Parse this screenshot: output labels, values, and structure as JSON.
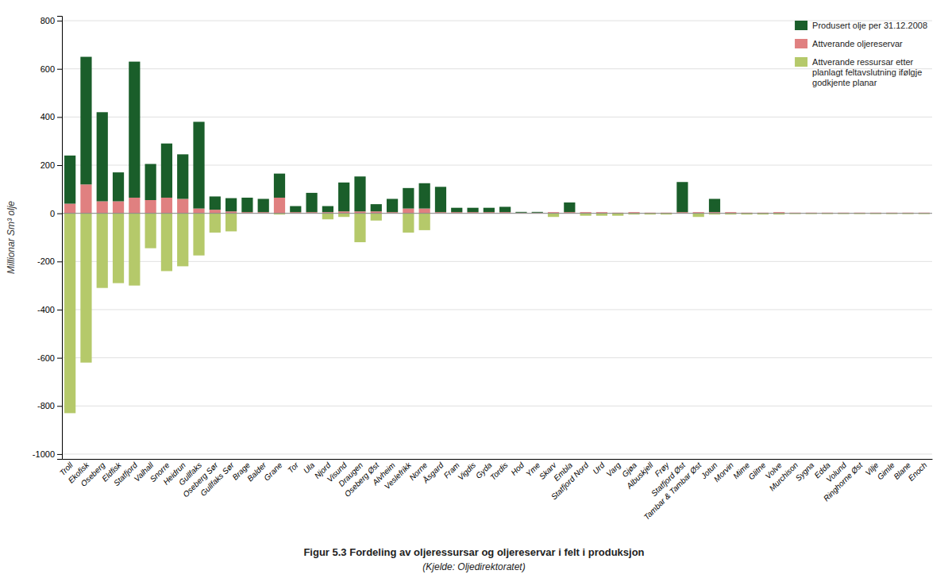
{
  "chart_data": {
    "type": "bar",
    "title": "Figur 5.3  Fordeling av oljeressursar og oljereservar i felt i produksjon",
    "subtitle": "(Kjelde: Oljedirektoratet)",
    "ylabel": "Millionar Sm³ olje",
    "categories": [
      "Troll",
      "Ekofisk",
      "Oseberg",
      "Eldfisk",
      "Statfjord",
      "Valhall",
      "Snorre",
      "Heidrun",
      "Gullfaks",
      "Oseberg Sør",
      "Gullfaks Sør",
      "Brage",
      "Balder",
      "Grane",
      "Tor",
      "Ula",
      "Njord",
      "Visund",
      "Draugen",
      "Oseberg Øst",
      "Alvheim",
      "Veslefrikk",
      "Norne",
      "Åsgard",
      "Fram",
      "Vigdis",
      "Gyda",
      "Tordis",
      "Hod",
      "Yme",
      "Skarv",
      "Embla",
      "Statfjord Nord",
      "Urd",
      "Varg",
      "Gjøa",
      "Albuskjell",
      "Frøy",
      "Statfjord Øst",
      "Tambar & Tambar Øst",
      "Jotun",
      "Morvin",
      "Mime",
      "Glitne",
      "Volve",
      "Murchison",
      "Sygna",
      "Edda",
      "Volund",
      "Ringhorne Øst",
      "Vilje",
      "Gimle",
      "Blane",
      "Enoch"
    ],
    "series": [
      {
        "name": "Produsert olje per 31.12.2008",
        "color": "#1a5e2a",
        "values": [
          200,
          530,
          370,
          120,
          565,
          150,
          225,
          185,
          360,
          55,
          55,
          60,
          55,
          100,
          25,
          80,
          25,
          120,
          145,
          30,
          55,
          85,
          105,
          105,
          18,
          18,
          18,
          22,
          3,
          3,
          0,
          40,
          0,
          0,
          0,
          0,
          0,
          0,
          125,
          0,
          55,
          0,
          0,
          0,
          0,
          0,
          0,
          0,
          0,
          0,
          0,
          0,
          0,
          0
        ]
      },
      {
        "name": "Attverande oljereservar",
        "color": "#e08080",
        "values": [
          40,
          120,
          50,
          50,
          65,
          55,
          65,
          60,
          20,
          15,
          8,
          5,
          5,
          65,
          5,
          5,
          5,
          8,
          8,
          8,
          5,
          20,
          20,
          5,
          5,
          5,
          5,
          5,
          3,
          3,
          5,
          5,
          5,
          5,
          3,
          5,
          3,
          3,
          5,
          5,
          5,
          5,
          3,
          3,
          5,
          3,
          3,
          3,
          3,
          3,
          3,
          3,
          3,
          3
        ]
      },
      {
        "name": "Attverande ressursar etter\nplanlagt feltavslutning ifølgje\ngodkjente planar",
        "color": "#b5c96a",
        "values": [
          -830,
          -620,
          -310,
          -290,
          -300,
          -145,
          -240,
          -220,
          -175,
          -80,
          -75,
          0,
          0,
          -5,
          0,
          0,
          -25,
          -15,
          -120,
          -30,
          0,
          -80,
          -70,
          0,
          0,
          0,
          0,
          0,
          0,
          0,
          -15,
          0,
          -10,
          -10,
          -10,
          -5,
          -5,
          -5,
          0,
          -15,
          -5,
          -5,
          -5,
          -5,
          -5,
          -3,
          -3,
          -3,
          -3,
          -3,
          -3,
          -3,
          -3,
          -3
        ]
      }
    ],
    "stacked": true,
    "ylim": [
      -1020,
      820
    ],
    "yticks": [
      -1000,
      -800,
      -600,
      -400,
      -200,
      0,
      200,
      400,
      600,
      800
    ],
    "grid": true,
    "legend": "upper right"
  }
}
